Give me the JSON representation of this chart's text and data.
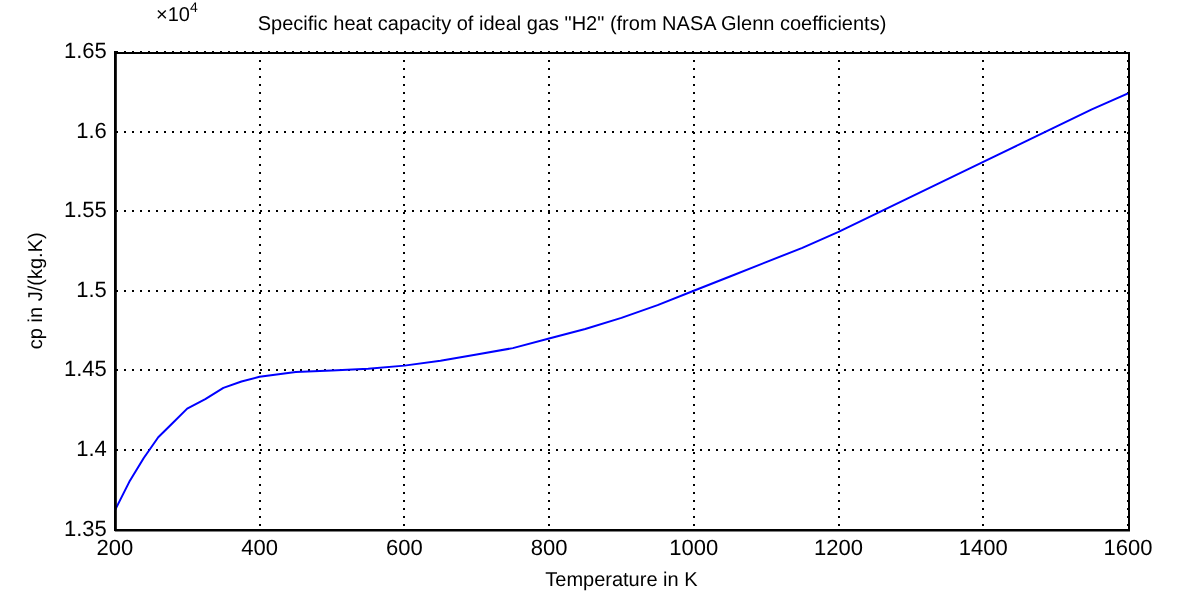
{
  "chart_data": {
    "type": "line",
    "title": "Specific heat capacity of ideal gas \"H2\" (from NASA Glenn coefficients)",
    "xlabel": "Temperature in K",
    "ylabel": "cp in J/(kg.K)",
    "annotations": [
      "×10$^{4}$"
    ],
    "x": [
      200,
      220,
      240,
      260,
      280,
      300,
      325,
      350,
      375,
      400,
      450,
      500,
      550,
      600,
      650,
      700,
      750,
      800,
      850,
      900,
      950,
      1000,
      1050,
      1100,
      1150,
      1200,
      1250,
      1300,
      1350,
      1400,
      1450,
      1500,
      1550,
      1600
    ],
    "series": [
      {
        "color": "#0000ff",
        "values": [
          1.362,
          1.38,
          1.395,
          1.408,
          1.417,
          1.426,
          1.432,
          1.439,
          1.443,
          1.446,
          1.449,
          1.45,
          1.451,
          1.453,
          1.456,
          1.46,
          1.464,
          1.47,
          1.476,
          1.483,
          1.491,
          1.5,
          1.509,
          1.518,
          1.527,
          1.537,
          1.548,
          1.559,
          1.57,
          1.581,
          1.592,
          1.603,
          1.614,
          1.624
        ]
      }
    ],
    "xlim": [
      200,
      1600
    ],
    "xticks": [
      200,
      400,
      600,
      800,
      1000,
      1200,
      1400,
      1600
    ],
    "ylim": [
      1.35,
      1.65
    ],
    "yticks": [
      1.35,
      1.4,
      1.45,
      1.5,
      1.55,
      1.6,
      1.65
    ],
    "grid": true,
    "legend": false,
    "marker": "none",
    "line_style": "solid"
  }
}
